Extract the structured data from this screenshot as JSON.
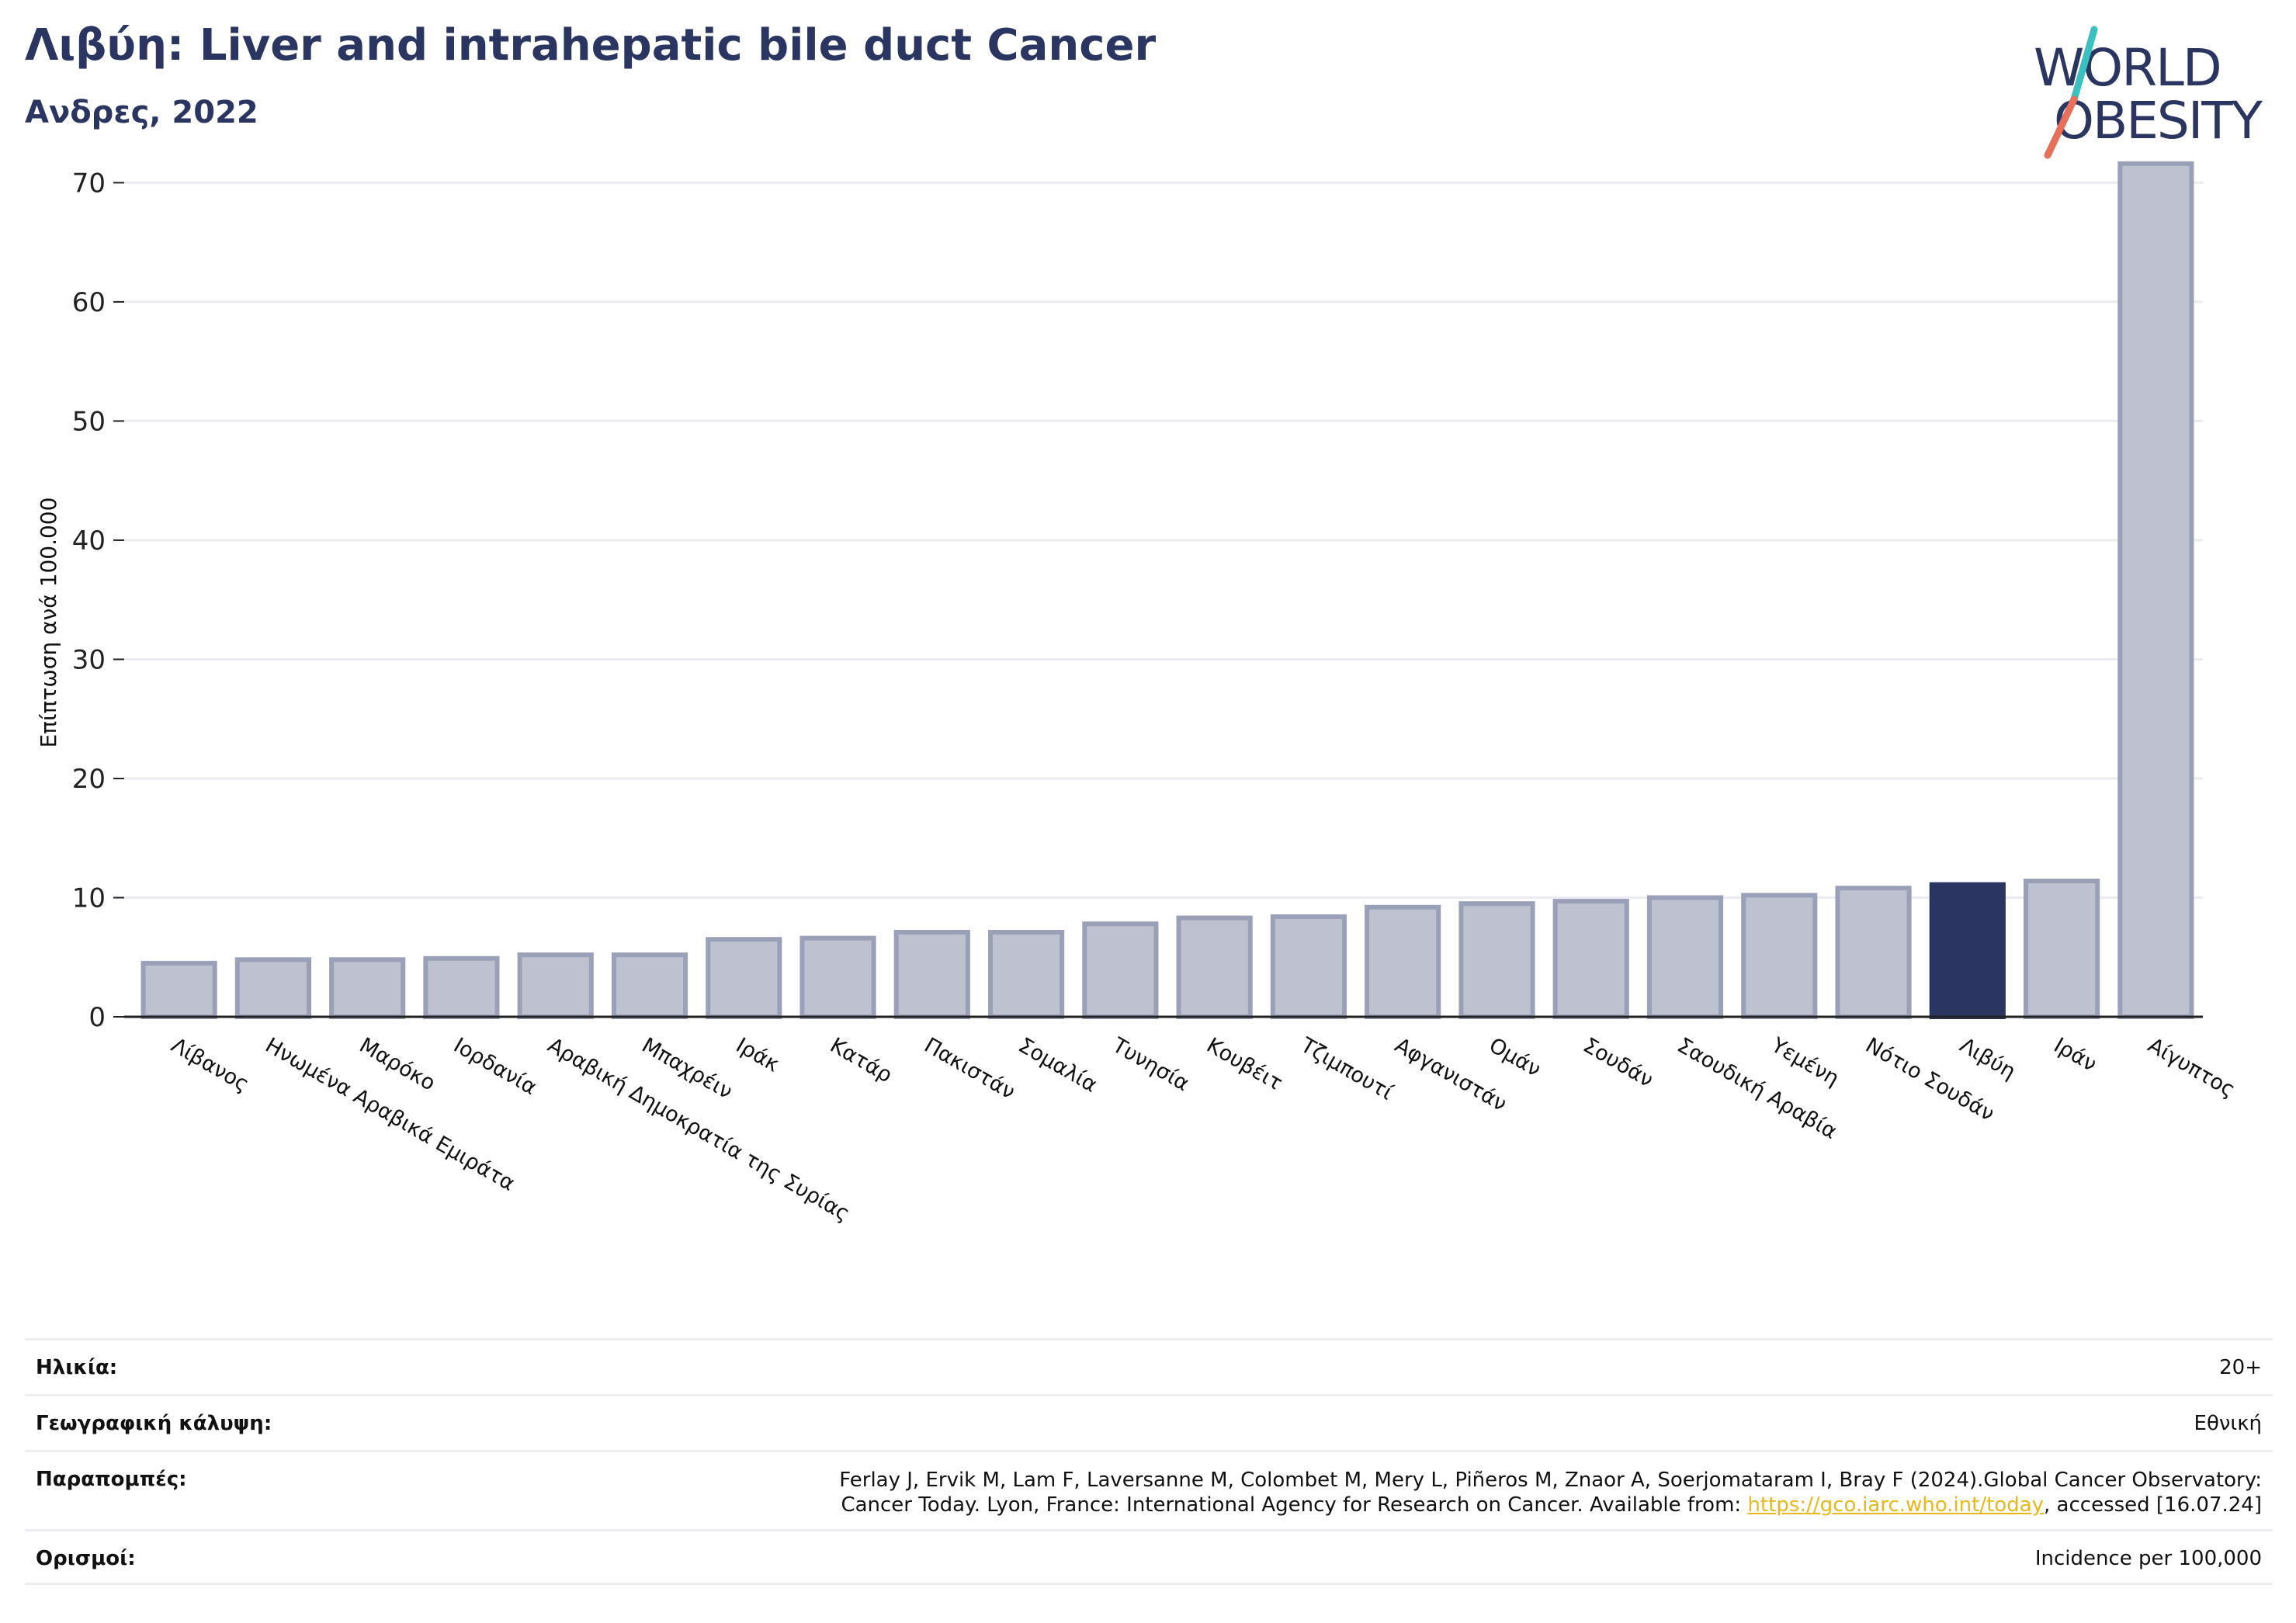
{
  "header": {
    "title": "Λιβύη: Liver and intrahepatic bile duct Cancer",
    "subtitle": "Ανδρες, 2022"
  },
  "logo": {
    "line1": "WORLD",
    "line2": "OBESITY"
  },
  "colors": {
    "bar": "#bec1cf",
    "bar_border": "#9aa0b8",
    "highlight": "#2a3561",
    "grid": "#ebecf2",
    "logo_teal": "#3bbfbf",
    "logo_coral": "#e8705a"
  },
  "chart_data": {
    "type": "bar",
    "ylabel": "Επίπτωση ανά 100.000",
    "ylim": [
      0,
      74
    ],
    "yticks": [
      0,
      10,
      20,
      30,
      40,
      50,
      60,
      70
    ],
    "grid": true,
    "highlight": "Λιβύη",
    "categories": [
      "Λίβανος",
      "Ηνωμένα Αραβικά Εμιράτα",
      "Μαρόκο",
      "Ιορδανία",
      "Αραβική Δημοκρατία της Συρίας",
      "Μπαχρέιν",
      "Ιράκ",
      "Κατάρ",
      "Πακιστάν",
      "Σομαλία",
      "Τυνησία",
      "Κουβέιτ",
      "Τζιμπουτί",
      "Αφγανιστάν",
      "Ομάν",
      "Σουδάν",
      "Σαουδική Αραβία",
      "Υεμένη",
      "Νότιο Σουδάν",
      "Λιβύη",
      "Ιράν",
      "Αίγυπτος"
    ],
    "values": [
      4.5,
      4.8,
      4.8,
      4.9,
      5.2,
      5.2,
      6.5,
      6.6,
      7.1,
      7.1,
      7.8,
      8.3,
      8.4,
      9.2,
      9.5,
      9.7,
      10.0,
      10.2,
      10.8,
      11.1,
      11.4,
      71.6
    ]
  },
  "footer": {
    "rows": [
      {
        "label": "Ηλικία:",
        "value": "20+"
      },
      {
        "label": "Γεωγραφική κάλυψη:",
        "value": "Εθνική"
      },
      {
        "label": "Παραπομπές:",
        "value_line1": "Ferlay J, Ervik M, Lam F, Laversanne M, Colombet M, Mery L, Piñeros M, Znaor A, Soerjomataram I, Bray F (2024).Global Cancer Observatory:",
        "value_line2_pre": "Cancer Today. Lyon, France: International Agency for Research on Cancer. Available from: ",
        "link": "https://gco.iarc.who.int/today",
        "value_line2_post": ", accessed [16.07.24]"
      },
      {
        "label": "Ορισμοί:",
        "value": "Incidence per 100,000"
      }
    ]
  }
}
